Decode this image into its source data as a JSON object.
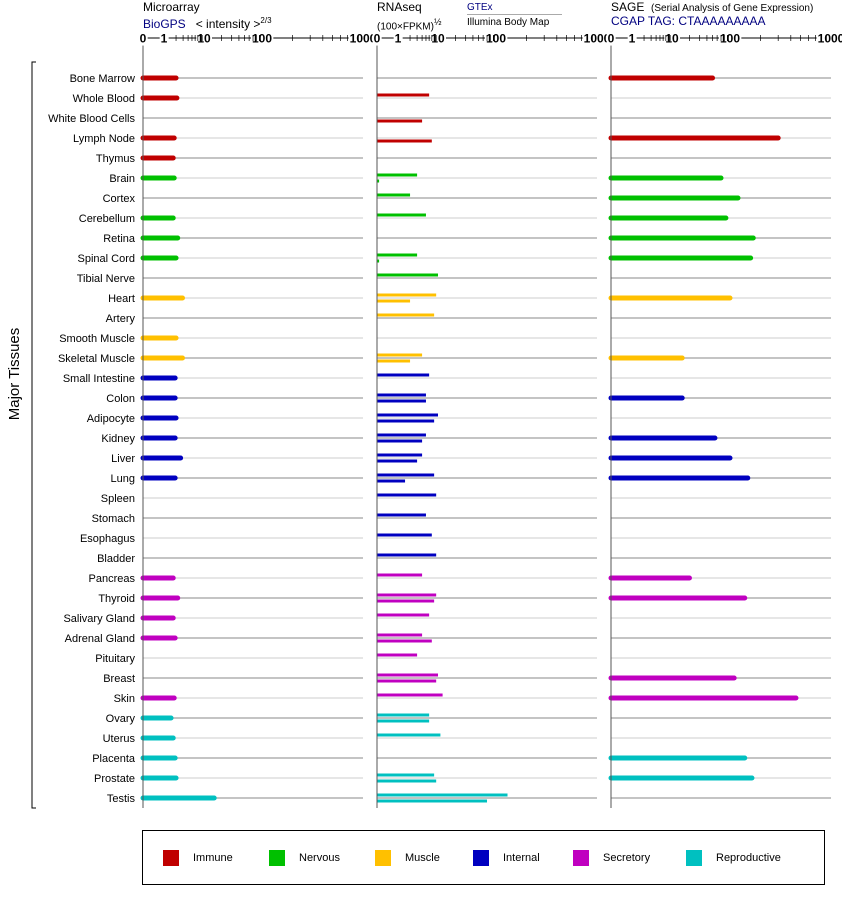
{
  "headers": {
    "microarray": {
      "title": "Microarray",
      "source": "BioGPS",
      "metric": "< intensity >",
      "exp": "2/3"
    },
    "rnaseq": {
      "title": "RNAseq",
      "metric": "(100×FPKM)",
      "exp": "½",
      "source1": "GTEx",
      "source2": "Illumina Body Map"
    },
    "sage": {
      "title": "SAGE",
      "subtitle": "(Serial Analysis of Gene Expression)",
      "source": "CGAP TAG: CTAAAAAAAAA"
    }
  },
  "axis_label": "Major Tissues",
  "colors": {
    "Immune": "#c00000",
    "Nervous": "#00c000",
    "Muscle": "#ffc000",
    "Internal": "#0000c0",
    "Secretory": "#c000c0",
    "Reproductive": "#00c0c0"
  },
  "legend": [
    "Immune",
    "Nervous",
    "Muscle",
    "Internal",
    "Secretory",
    "Reproductive"
  ],
  "chart_data": {
    "type": "bar",
    "scale": "power-like (0,1,10,100,1000 ticks)",
    "ticks": [
      "0",
      "1",
      "10",
      "100",
      "1000"
    ],
    "tick_values": [
      0,
      1,
      10,
      100,
      1000
    ],
    "categories": [
      "Bone Marrow",
      "Whole Blood",
      "White Blood Cells",
      "Lymph Node",
      "Thymus",
      "Brain",
      "Cortex",
      "Cerebellum",
      "Retina",
      "Spinal Cord",
      "Tibial Nerve",
      "Heart",
      "Artery",
      "Smooth Muscle",
      "Skeletal Muscle",
      "Small Intestine",
      "Colon",
      "Adipocyte",
      "Kidney",
      "Liver",
      "Lung",
      "Spleen",
      "Stomach",
      "Esophagus",
      "Bladder",
      "Pancreas",
      "Thyroid",
      "Salivary Gland",
      "Adrenal Gland",
      "Pituitary",
      "Breast",
      "Skin",
      "Ovary",
      "Uterus",
      "Placenta",
      "Prostate",
      "Testis"
    ],
    "groups": [
      "Immune",
      "Immune",
      "Immune",
      "Immune",
      "Immune",
      "Nervous",
      "Nervous",
      "Nervous",
      "Nervous",
      "Nervous",
      "Nervous",
      "Muscle",
      "Muscle",
      "Muscle",
      "Muscle",
      "Internal",
      "Internal",
      "Internal",
      "Internal",
      "Internal",
      "Internal",
      "Internal",
      "Internal",
      "Internal",
      "Internal",
      "Secretory",
      "Secretory",
      "Secretory",
      "Secretory",
      "Secretory",
      "Secretory",
      "Secretory",
      "Reproductive",
      "Reproductive",
      "Reproductive",
      "Reproductive",
      "Reproductive"
    ],
    "microarray": [
      2.0,
      2.1,
      null,
      1.8,
      1.7,
      1.8,
      null,
      1.7,
      2.2,
      2.0,
      null,
      2.9,
      null,
      2.0,
      2.9,
      1.9,
      1.9,
      2.0,
      1.9,
      2.6,
      1.9,
      null,
      null,
      null,
      null,
      1.7,
      2.2,
      1.7,
      1.9,
      null,
      null,
      1.8,
      1.5,
      1.7,
      1.9,
      2.0,
      15
    ],
    "rnaseq_gtex": [
      null,
      6,
      null,
      null,
      null,
      3,
      2,
      5,
      null,
      3,
      10,
      9,
      8,
      null,
      4,
      6,
      5,
      10,
      5,
      4,
      8,
      9,
      5,
      7,
      9,
      4,
      9,
      6,
      4,
      3,
      10,
      12,
      6,
      11,
      null,
      8,
      130
    ],
    "rnaseq_ibm": [
      null,
      null,
      4,
      7,
      null,
      0.1,
      null,
      null,
      null,
      0.1,
      null,
      2,
      null,
      null,
      2,
      null,
      5,
      8,
      4,
      3,
      1.5,
      null,
      null,
      null,
      null,
      null,
      8,
      null,
      7,
      null,
      9,
      null,
      6,
      null,
      null,
      9,
      70
    ],
    "sage": [
      50,
      null,
      null,
      300,
      null,
      70,
      120,
      85,
      170,
      160,
      null,
      100,
      null,
      null,
      15,
      null,
      15,
      null,
      55,
      100,
      150,
      null,
      null,
      null,
      null,
      20,
      140,
      null,
      null,
      null,
      110,
      450,
      null,
      null,
      140,
      165,
      null
    ]
  }
}
